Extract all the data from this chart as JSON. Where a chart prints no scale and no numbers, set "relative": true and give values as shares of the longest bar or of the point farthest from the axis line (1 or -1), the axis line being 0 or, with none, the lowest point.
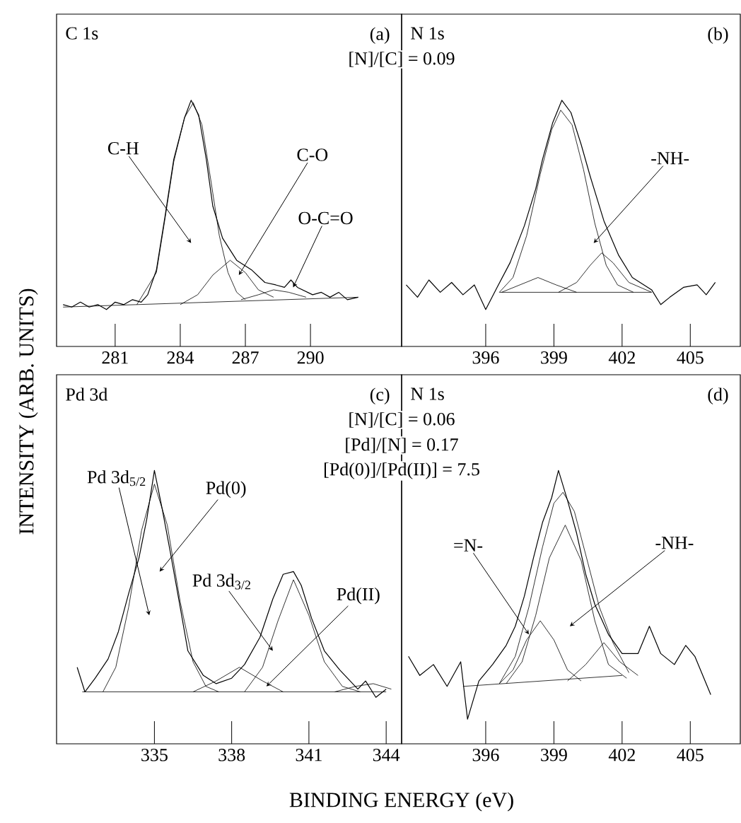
{
  "chart_data": [
    {
      "type": "line",
      "title": "C 1s",
      "subtitle": "(a)",
      "ylabel": "INTENSITY (ARB. UNITS)",
      "relative": true,
      "tick_labels": "x",
      "marker": "none",
      "xlim": [
        278.3,
        294.2
      ],
      "xticks": [
        281,
        284,
        287,
        290
      ],
      "series": [
        {
          "color": "#000000",
          "x": [
            278.6,
            279.0,
            279.4,
            279.8,
            280.2,
            280.6,
            281.0,
            281.4,
            281.8,
            282.2,
            282.5,
            282.9,
            283.3,
            283.7,
            284.2,
            284.5,
            284.85,
            285.2,
            285.5,
            285.95,
            286.6,
            287.3,
            287.9,
            288.4,
            288.8,
            289.1,
            289.4,
            290.1,
            290.5,
            290.9,
            291.3,
            291.7,
            292.2
          ],
          "values": [
            0.17,
            0.16,
            0.18,
            0.16,
            0.17,
            0.15,
            0.18,
            0.17,
            0.19,
            0.18,
            0.21,
            0.31,
            0.53,
            0.76,
            0.93,
            1.0,
            0.94,
            0.76,
            0.57,
            0.44,
            0.35,
            0.31,
            0.26,
            0.25,
            0.24,
            0.27,
            0.24,
            0.21,
            0.22,
            0.2,
            0.22,
            0.19,
            0.2
          ]
        },
        {
          "color": "#000000",
          "x": [
            278.6,
            292.2
          ],
          "values": [
            0.16,
            0.2
          ]
        },
        {
          "color": "#000000",
          "x": [
            282.0,
            282.9,
            283.3,
            283.7,
            284.2,
            284.6,
            285.0,
            285.4,
            285.8,
            286.2,
            286.6,
            287.0
          ],
          "values": [
            0.17,
            0.3,
            0.52,
            0.75,
            0.93,
            0.99,
            0.9,
            0.68,
            0.45,
            0.3,
            0.22,
            0.19
          ]
        },
        {
          "color": "#000000",
          "x": [
            284.0,
            284.8,
            285.5,
            286.3,
            287.0,
            287.6,
            288.3
          ],
          "values": [
            0.17,
            0.21,
            0.29,
            0.35,
            0.3,
            0.23,
            0.2
          ]
        },
        {
          "color": "#000000",
          "x": [
            286.8,
            287.6,
            288.3,
            289.0,
            289.8
          ],
          "values": [
            0.19,
            0.21,
            0.23,
            0.22,
            0.2
          ]
        }
      ],
      "annotations": [
        {
          "text": "C-H",
          "x": 284.5,
          "y": 0.42
        },
        {
          "text": "C-O",
          "x": 286.7,
          "y": 0.29
        },
        {
          "text": "O-C=O",
          "x": 289.2,
          "y": 0.24
        }
      ]
    },
    {
      "type": "line",
      "title": "N 1s",
      "subtitle": "(b)",
      "relative": true,
      "tick_labels": "x",
      "marker": "none",
      "xlim": [
        392.3,
        407.2
      ],
      "xticks": [
        396,
        399,
        402,
        405
      ],
      "series": [
        {
          "color": "#000000",
          "x": [
            392.5,
            393.0,
            393.5,
            394.0,
            394.5,
            395.0,
            395.5,
            396.0,
            396.5,
            397.07,
            397.7,
            398.2,
            398.5,
            398.95,
            399.35,
            399.75,
            400.2,
            400.6,
            401.2,
            401.85,
            402.45,
            403.3,
            403.7,
            404.1,
            404.7,
            405.3,
            405.7,
            406.1
          ],
          "values": [
            0.25,
            0.2,
            0.27,
            0.22,
            0.26,
            0.21,
            0.25,
            0.15,
            0.24,
            0.34,
            0.49,
            0.64,
            0.76,
            0.91,
            1.0,
            0.95,
            0.82,
            0.69,
            0.51,
            0.37,
            0.28,
            0.23,
            0.17,
            0.2,
            0.24,
            0.25,
            0.21,
            0.26
          ]
        },
        {
          "color": "#000000",
          "x": [
            396.6,
            403.3
          ],
          "values": [
            0.22,
            0.22
          ]
        },
        {
          "color": "#000000",
          "x": [
            396.6,
            397.2,
            397.8,
            398.4,
            398.9,
            399.3,
            399.8,
            400.3,
            400.8,
            401.3,
            401.8,
            402.5
          ],
          "values": [
            0.22,
            0.28,
            0.45,
            0.7,
            0.88,
            0.96,
            0.9,
            0.72,
            0.5,
            0.33,
            0.25,
            0.22
          ]
        },
        {
          "color": "#000000",
          "x": [
            396.7,
            397.5,
            398.3,
            399.1,
            400.0
          ],
          "values": [
            0.22,
            0.25,
            0.28,
            0.25,
            0.22
          ]
        },
        {
          "color": "#000000",
          "x": [
            399.2,
            400.0,
            400.6,
            401.1,
            401.6,
            402.3,
            403.3
          ],
          "values": [
            0.22,
            0.26,
            0.33,
            0.38,
            0.34,
            0.26,
            0.22
          ]
        }
      ],
      "annotations": [
        "[N]/[C] = 0.09",
        {
          "text": "-NH-",
          "x": 400.75,
          "y": 0.42
        }
      ]
    },
    {
      "type": "line",
      "title": "Pd 3d",
      "subtitle": "(c)",
      "xlabel": "BINDING ENERGY (eV)",
      "relative": true,
      "tick_labels": "x",
      "marker": "none",
      "xlim": [
        331.2,
        344.6
      ],
      "xticks": [
        335,
        338,
        341,
        344
      ],
      "series": [
        {
          "color": "#000000",
          "x": [
            332.0,
            332.3,
            332.7,
            333.2,
            333.6,
            334.0,
            334.4,
            334.7,
            335.0,
            335.3,
            335.6,
            336.0,
            336.3,
            336.9,
            337.4,
            338.0,
            338.5,
            339.1,
            339.6,
            340.0,
            340.4,
            340.7,
            341.1,
            341.6,
            342.2,
            342.9,
            343.2,
            343.6,
            344.0
          ],
          "values": [
            0.28,
            0.19,
            0.24,
            0.31,
            0.41,
            0.55,
            0.68,
            0.82,
            1.0,
            0.86,
            0.71,
            0.5,
            0.34,
            0.25,
            0.22,
            0.24,
            0.29,
            0.39,
            0.53,
            0.62,
            0.63,
            0.58,
            0.46,
            0.34,
            0.27,
            0.2,
            0.23,
            0.17,
            0.2
          ]
        },
        {
          "color": "#000000",
          "x": [
            332.2,
            344.0
          ],
          "values": [
            0.19,
            0.19
          ]
        },
        {
          "color": "#000000",
          "x": [
            333.0,
            333.5,
            334.0,
            334.5,
            335.0,
            335.5,
            336.0,
            336.5,
            337.0,
            337.5
          ],
          "values": [
            0.19,
            0.28,
            0.5,
            0.78,
            0.95,
            0.8,
            0.52,
            0.3,
            0.21,
            0.19
          ]
        },
        {
          "color": "#000000",
          "x": [
            336.5,
            337.4,
            338.3,
            339.2,
            340.0
          ],
          "values": [
            0.19,
            0.23,
            0.28,
            0.23,
            0.19
          ]
        },
        {
          "color": "#000000",
          "x": [
            338.5,
            339.2,
            339.8,
            340.4,
            341.0,
            341.6,
            342.3,
            343.0
          ],
          "values": [
            0.19,
            0.28,
            0.45,
            0.6,
            0.47,
            0.3,
            0.21,
            0.19
          ]
        },
        {
          "color": "#000000",
          "x": [
            342.0,
            342.8,
            343.5,
            344.2
          ],
          "values": [
            0.19,
            0.21,
            0.22,
            0.2
          ]
        }
      ],
      "annotations": [
        {
          "text": "Pd 3d$_{5/2}$",
          "x": 334.8,
          "y": 0.47
        },
        {
          "text": "Pd(0)",
          "x": 335.2,
          "y": 0.63
        },
        {
          "text": "Pd 3d$_{3/2}$",
          "x": 339.6,
          "y": 0.34
        },
        {
          "text": "Pd(II)",
          "x": 339.35,
          "y": 0.21
        }
      ]
    },
    {
      "type": "line",
      "title": "N 1s",
      "subtitle": "(d)",
      "relative": true,
      "tick_labels": "x",
      "marker": "none",
      "xlim": [
        392.3,
        407.2
      ],
      "xticks": [
        396,
        399,
        402,
        405
      ],
      "series": [
        {
          "color": "#000000",
          "x": [
            392.6,
            393.1,
            393.7,
            394.3,
            394.9,
            395.2,
            395.7,
            396.3,
            396.9,
            397.3,
            397.7,
            398.1,
            398.5,
            398.9,
            399.2,
            399.6,
            400.0,
            400.4,
            400.8,
            401.4,
            402.0,
            402.7,
            403.2,
            403.7,
            404.3,
            404.8,
            405.2,
            405.9
          ],
          "values": [
            0.32,
            0.25,
            0.29,
            0.21,
            0.3,
            0.09,
            0.23,
            0.29,
            0.36,
            0.43,
            0.54,
            0.68,
            0.81,
            0.9,
            1.0,
            0.89,
            0.77,
            0.62,
            0.51,
            0.4,
            0.33,
            0.33,
            0.43,
            0.33,
            0.29,
            0.36,
            0.32,
            0.18
          ]
        },
        {
          "color": "#000000",
          "x": [
            395.0,
            402.0
          ],
          "values": [
            0.21,
            0.25
          ]
        },
        {
          "color": "#000000",
          "x": [
            396.6,
            397.3,
            397.9,
            398.5,
            399.0,
            399.4,
            399.9,
            400.5,
            401.0,
            401.6,
            402.3
          ],
          "values": [
            0.22,
            0.32,
            0.5,
            0.72,
            0.88,
            0.92,
            0.85,
            0.66,
            0.5,
            0.37,
            0.26
          ]
        },
        {
          "color": "#000000",
          "x": [
            396.6,
            397.2,
            397.8,
            398.4,
            399.0,
            399.6,
            400.2
          ],
          "values": [
            0.22,
            0.27,
            0.38,
            0.45,
            0.38,
            0.27,
            0.23
          ]
        },
        {
          "color": "#000000",
          "x": [
            396.9,
            397.6,
            398.2,
            398.8,
            399.5,
            400.2,
            400.8,
            401.4,
            402.2
          ],
          "values": [
            0.22,
            0.3,
            0.47,
            0.68,
            0.8,
            0.67,
            0.45,
            0.29,
            0.24
          ]
        },
        {
          "color": "#000000",
          "x": [
            399.6,
            400.4,
            401.2,
            401.9,
            402.7
          ],
          "values": [
            0.23,
            0.29,
            0.37,
            0.3,
            0.25
          ]
        }
      ],
      "annotations": [
        "[N]/[C] = 0.06",
        "[Pd]/[N] = 0.17",
        "[Pd(0)]/[Pd(II)] = 7.5",
        {
          "text": "=N-",
          "x": 397.9,
          "y": 0.4
        },
        {
          "text": "-NH-",
          "x": 399.7,
          "y": 0.43
        }
      ]
    }
  ]
}
